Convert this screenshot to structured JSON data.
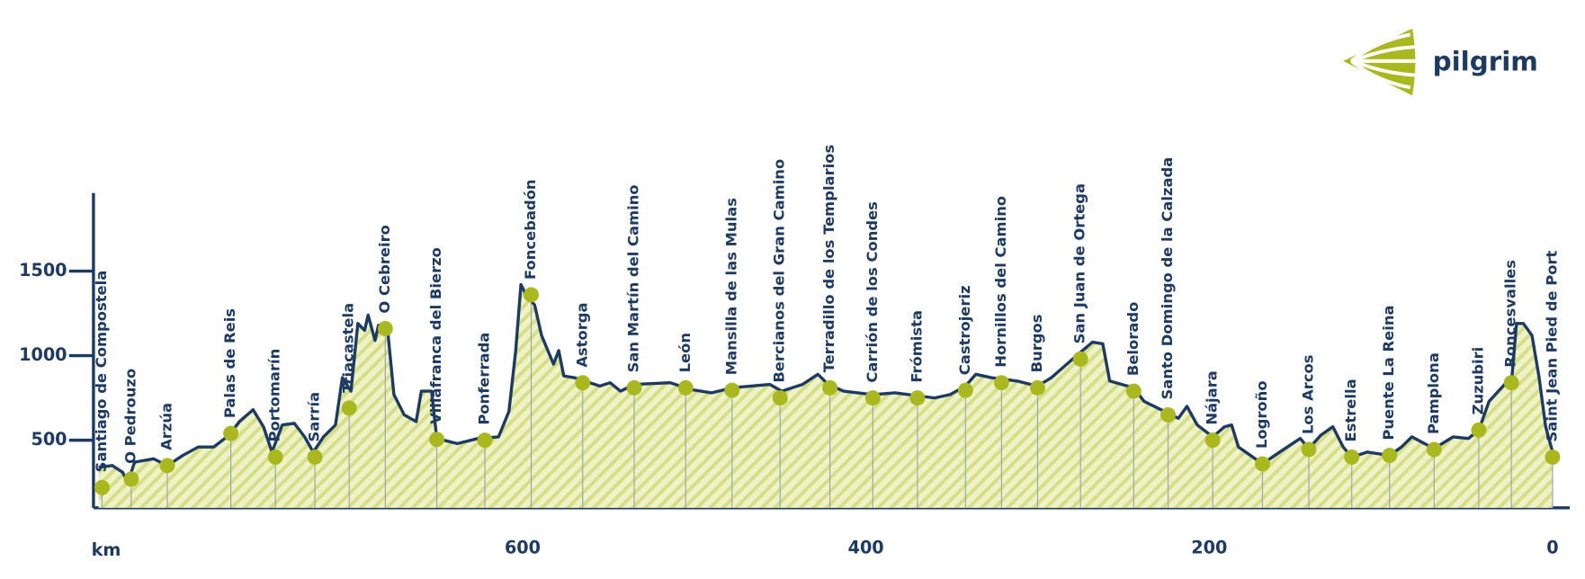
{
  "brand": "pilgrim",
  "chart_data": {
    "type": "area",
    "x_label": "km",
    "line_color": "#1d3a63",
    "fill_color": "#eef2c4",
    "hatch_color": "#d6de8a",
    "marker_color": "#a9b81f",
    "xlim": [
      850,
      -10
    ],
    "xticks": [
      600,
      400,
      200,
      0
    ],
    "ylim": [
      100,
      1950
    ],
    "yticks": [
      500,
      1000,
      1500
    ],
    "x": [
      847,
      839,
      833,
      830,
      826,
      815,
      807,
      798,
      789,
      780,
      771,
      765,
      757,
      751,
      746,
      740,
      733,
      727,
      722,
      716,
      709,
      705,
      700,
      696,
      692,
      690,
      686,
      684,
      679,
      675,
      669,
      662,
      659,
      653,
      650,
      638,
      626,
      614,
      608,
      604,
      601,
      598,
      593,
      589,
      582,
      579,
      576,
      570,
      555,
      549,
      543,
      535,
      514,
      502,
      490,
      478,
      456,
      449,
      437,
      428,
      422,
      413,
      396,
      383,
      360,
      351,
      342,
      336,
      327,
      312,
      300,
      292,
      283,
      275,
      268,
      262,
      258,
      244,
      238,
      224,
      218,
      213,
      207,
      198,
      191,
      187,
      183,
      169,
      159,
      147,
      142,
      135,
      128,
      122,
      117,
      108,
      95,
      88,
      82,
      69,
      58,
      49,
      43,
      37,
      28,
      24,
      21,
      17,
      12,
      8,
      4,
      0
    ],
    "values": [
      340,
      350,
      310,
      250,
      370,
      390,
      350,
      410,
      460,
      460,
      530,
      610,
      680,
      580,
      430,
      590,
      600,
      520,
      430,
      520,
      590,
      870,
      790,
      1190,
      1150,
      1240,
      1090,
      1180,
      1190,
      770,
      650,
      610,
      790,
      790,
      510,
      480,
      510,
      520,
      670,
      1030,
      1420,
      1360,
      1300,
      1120,
      950,
      1030,
      880,
      870,
      820,
      840,
      790,
      830,
      840,
      800,
      780,
      810,
      830,
      790,
      830,
      890,
      830,
      790,
      770,
      780,
      750,
      770,
      820,
      890,
      870,
      850,
      820,
      870,
      950,
      1020,
      1080,
      1070,
      850,
      810,
      730,
      660,
      630,
      700,
      590,
      520,
      580,
      590,
      460,
      360,
      430,
      510,
      450,
      530,
      580,
      460,
      400,
      430,
      410,
      460,
      520,
      450,
      520,
      510,
      560,
      730,
      830,
      840,
      1190,
      1190,
      1120,
      880,
      580,
      430
    ],
    "stations": [
      {
        "name": "Santiago de Compostela",
        "km": 845,
        "elevation": 220
      },
      {
        "name": "O Pedrouzo",
        "km": 828,
        "elevation": 270
      },
      {
        "name": "Arzúa",
        "km": 807,
        "elevation": 350
      },
      {
        "name": "Palas de Reis",
        "km": 770,
        "elevation": 540
      },
      {
        "name": "Portomarín",
        "km": 744,
        "elevation": 400
      },
      {
        "name": "Sarría",
        "km": 721,
        "elevation": 400
      },
      {
        "name": "Triacastela",
        "km": 701,
        "elevation": 690
      },
      {
        "name": "O Cebreiro",
        "km": 680,
        "elevation": 1160
      },
      {
        "name": "Villafranca del Bierzo",
        "km": 650,
        "elevation": 505
      },
      {
        "name": "Ponferrada",
        "km": 622,
        "elevation": 500
      },
      {
        "name": "Foncebadón",
        "km": 595,
        "elevation": 1360
      },
      {
        "name": "Astorga",
        "km": 565,
        "elevation": 840
      },
      {
        "name": "San Martín del Camino",
        "km": 535,
        "elevation": 810
      },
      {
        "name": "León",
        "km": 505,
        "elevation": 810
      },
      {
        "name": "Mansilla de las Mulas",
        "km": 478,
        "elevation": 795
      },
      {
        "name": "Bercianos del Gran Camino",
        "km": 450,
        "elevation": 750
      },
      {
        "name": "Terradillo de los Templarios",
        "km": 421,
        "elevation": 810
      },
      {
        "name": "Carrión de los Condes",
        "km": 396,
        "elevation": 750
      },
      {
        "name": "Frómista",
        "km": 370,
        "elevation": 750
      },
      {
        "name": "Castrojeriz",
        "km": 342,
        "elevation": 795
      },
      {
        "name": "Hornillos del Camino",
        "km": 321,
        "elevation": 840
      },
      {
        "name": "Burgos",
        "km": 300,
        "elevation": 810
      },
      {
        "name": "San Juan de Ortega",
        "km": 275,
        "elevation": 980
      },
      {
        "name": "Belorado",
        "km": 244,
        "elevation": 790
      },
      {
        "name": "Santo Domingo de la Calzada",
        "km": 224,
        "elevation": 650
      },
      {
        "name": "Nájara",
        "km": 198,
        "elevation": 500
      },
      {
        "name": "Logroño",
        "km": 169,
        "elevation": 360
      },
      {
        "name": "Los Arcos",
        "km": 142,
        "elevation": 445
      },
      {
        "name": "Estrella",
        "km": 117,
        "elevation": 400
      },
      {
        "name": "Puente La Reina",
        "km": 95,
        "elevation": 410
      },
      {
        "name": "Pamplona",
        "km": 69,
        "elevation": 445
      },
      {
        "name": "Zuzubiri",
        "km": 43,
        "elevation": 560
      },
      {
        "name": "Roncesvalles",
        "km": 24,
        "elevation": 840
      },
      {
        "name": "Saint Jean Pied de Port",
        "km": 0,
        "elevation": 400
      }
    ]
  }
}
